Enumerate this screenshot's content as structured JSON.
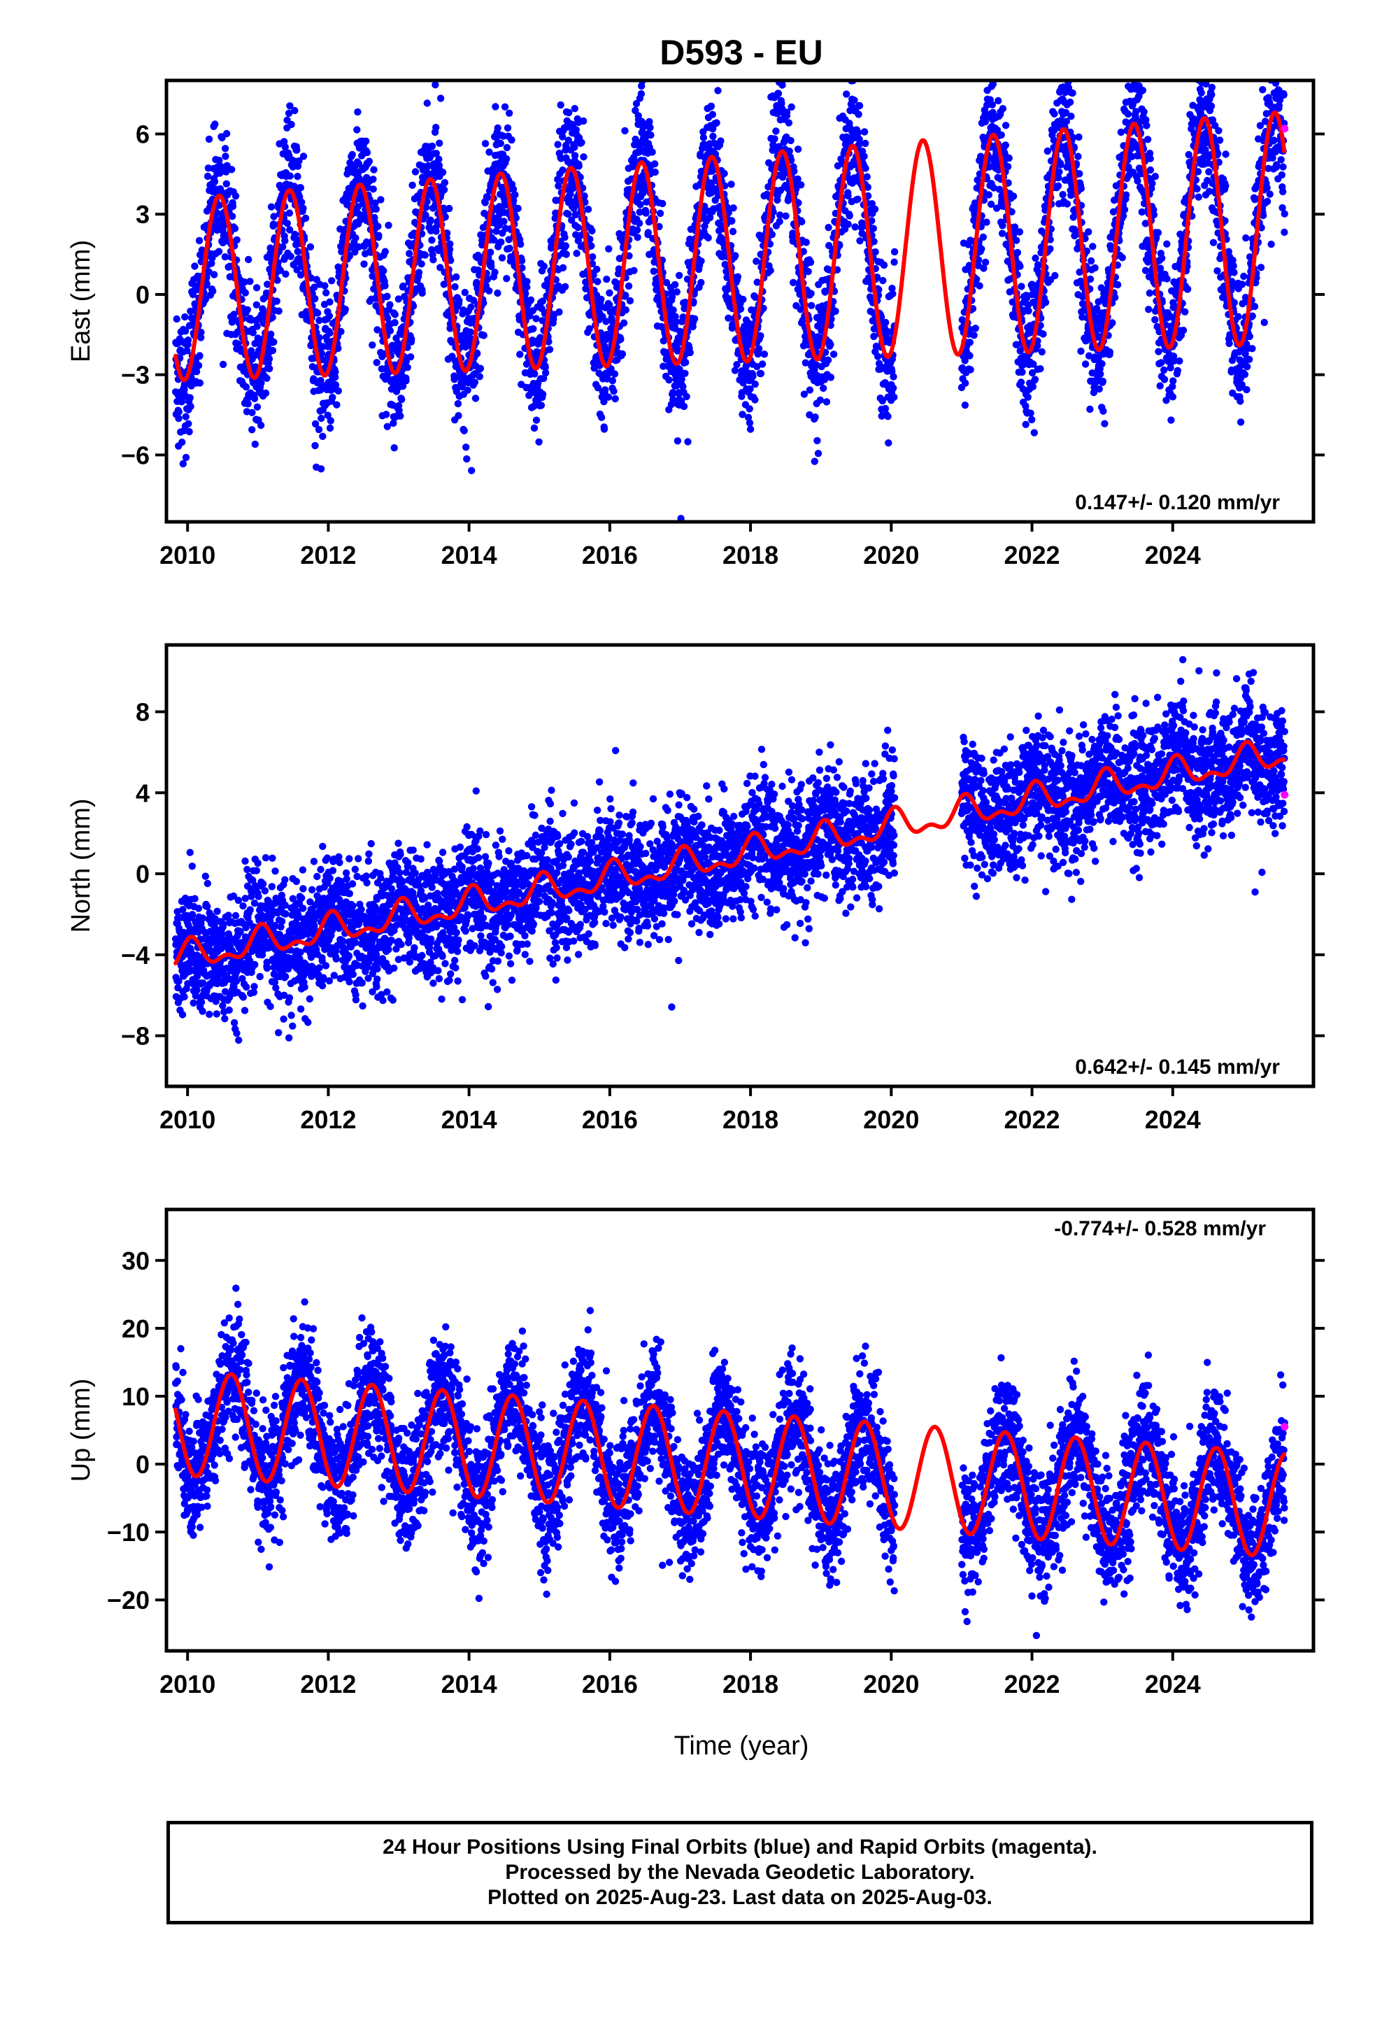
{
  "title": "D593 - EU",
  "xlabel": "Time (year)",
  "footer": {
    "line1": "24 Hour Positions Using Final Orbits (blue) and Rapid Orbits (magenta).",
    "line2": "Processed by the Nevada Geodetic Laboratory.",
    "line3": "Plotted on 2025-Aug-23. Last data on 2025-Aug-03."
  },
  "colors": {
    "final_orbits": "#0000ff",
    "rapid_orbits": "#ff00ff",
    "model": "#ff0000",
    "axis": "#000000"
  },
  "chart_data": [
    {
      "type": "scatter",
      "panel": "east",
      "ylabel": "East (mm)",
      "rate_label": "0.147+/- 0.120 mm/yr",
      "xlim": [
        2009.7,
        2026.0
      ],
      "ylim": [
        -8.5,
        8.0
      ],
      "xticks": [
        2010,
        2012,
        2014,
        2016,
        2018,
        2020,
        2022,
        2024
      ],
      "yticks": [
        6,
        3,
        0,
        -3,
        -6
      ],
      "ytick_labels": [
        "6",
        "3",
        "0",
        "−3",
        "−6"
      ],
      "data_span": [
        2009.83,
        2025.59
      ],
      "gaps": [
        [
          2020.05,
          2021.0
        ]
      ],
      "series": [
        {
          "name": "Final Orbits",
          "color": "#0000ff"
        },
        {
          "name": "Rapid Orbits",
          "color": "#ff00ff",
          "points": [
            [
              2025.59,
              6.2
            ]
          ]
        }
      ],
      "model": {
        "start": 2009.83,
        "end": 2025.59,
        "rate": 0.147,
        "offset_at_2010": 0.2,
        "annual_amp": 3.4,
        "annual_peak_phase": 0.45,
        "semiannual_amp": 0.0,
        "amp_trend": 0.06
      },
      "scatter_noise": 1.3
    },
    {
      "type": "scatter",
      "panel": "north",
      "ylabel": "North (mm)",
      "rate_label": "0.642+/- 0.145 mm/yr",
      "xlim": [
        2009.7,
        2026.0
      ],
      "ylim": [
        -10.5,
        11.3
      ],
      "xticks": [
        2010,
        2012,
        2014,
        2016,
        2018,
        2020,
        2022,
        2024
      ],
      "yticks": [
        8,
        4,
        0,
        -4,
        -8
      ],
      "ytick_labels": [
        "8",
        "4",
        "0",
        "−4",
        "−8"
      ],
      "data_span": [
        2009.83,
        2025.59
      ],
      "gaps": [
        [
          2020.05,
          2021.0
        ]
      ],
      "series": [
        {
          "name": "Final Orbits",
          "color": "#0000ff"
        },
        {
          "name": "Rapid Orbits",
          "color": "#ff00ff",
          "points": [
            [
              2025.59,
              3.9
            ]
          ]
        }
      ],
      "model": {
        "start": 2009.83,
        "end": 2025.59,
        "rate": 0.642,
        "offset_at_2010": -4.1,
        "annual_amp": 0.6,
        "annual_peak_phase": 0.05,
        "semiannual_amp": 0.35,
        "amp_trend": 0.0
      },
      "scatter_noise": 1.5
    },
    {
      "type": "scatter",
      "panel": "up",
      "ylabel": "Up (mm)",
      "rate_label": "-0.774+/- 0.528 mm/yr",
      "xlim": [
        2009.7,
        2026.0
      ],
      "ylim": [
        -27.5,
        37.5
      ],
      "xticks": [
        2010,
        2012,
        2014,
        2016,
        2018,
        2020,
        2022,
        2024
      ],
      "yticks": [
        30,
        20,
        10,
        0,
        -10,
        -20
      ],
      "ytick_labels": [
        "30",
        "20",
        "10",
        "0",
        "−10",
        "−20"
      ],
      "data_span": [
        2009.83,
        2025.59
      ],
      "gaps": [
        [
          2020.05,
          2021.0
        ]
      ],
      "series": [
        {
          "name": "Final Orbits",
          "color": "#0000ff"
        },
        {
          "name": "Rapid Orbits",
          "color": "#ff00ff",
          "points": [
            [
              2025.59,
              5.5
            ]
          ]
        }
      ],
      "model": {
        "start": 2009.83,
        "end": 2025.59,
        "rate": -0.774,
        "offset_at_2010": 6.0,
        "annual_amp": 7.7,
        "annual_peak_phase": 0.62,
        "semiannual_amp": 0.0,
        "amp_trend": 0.0
      },
      "scatter_noise": 4.5
    }
  ]
}
